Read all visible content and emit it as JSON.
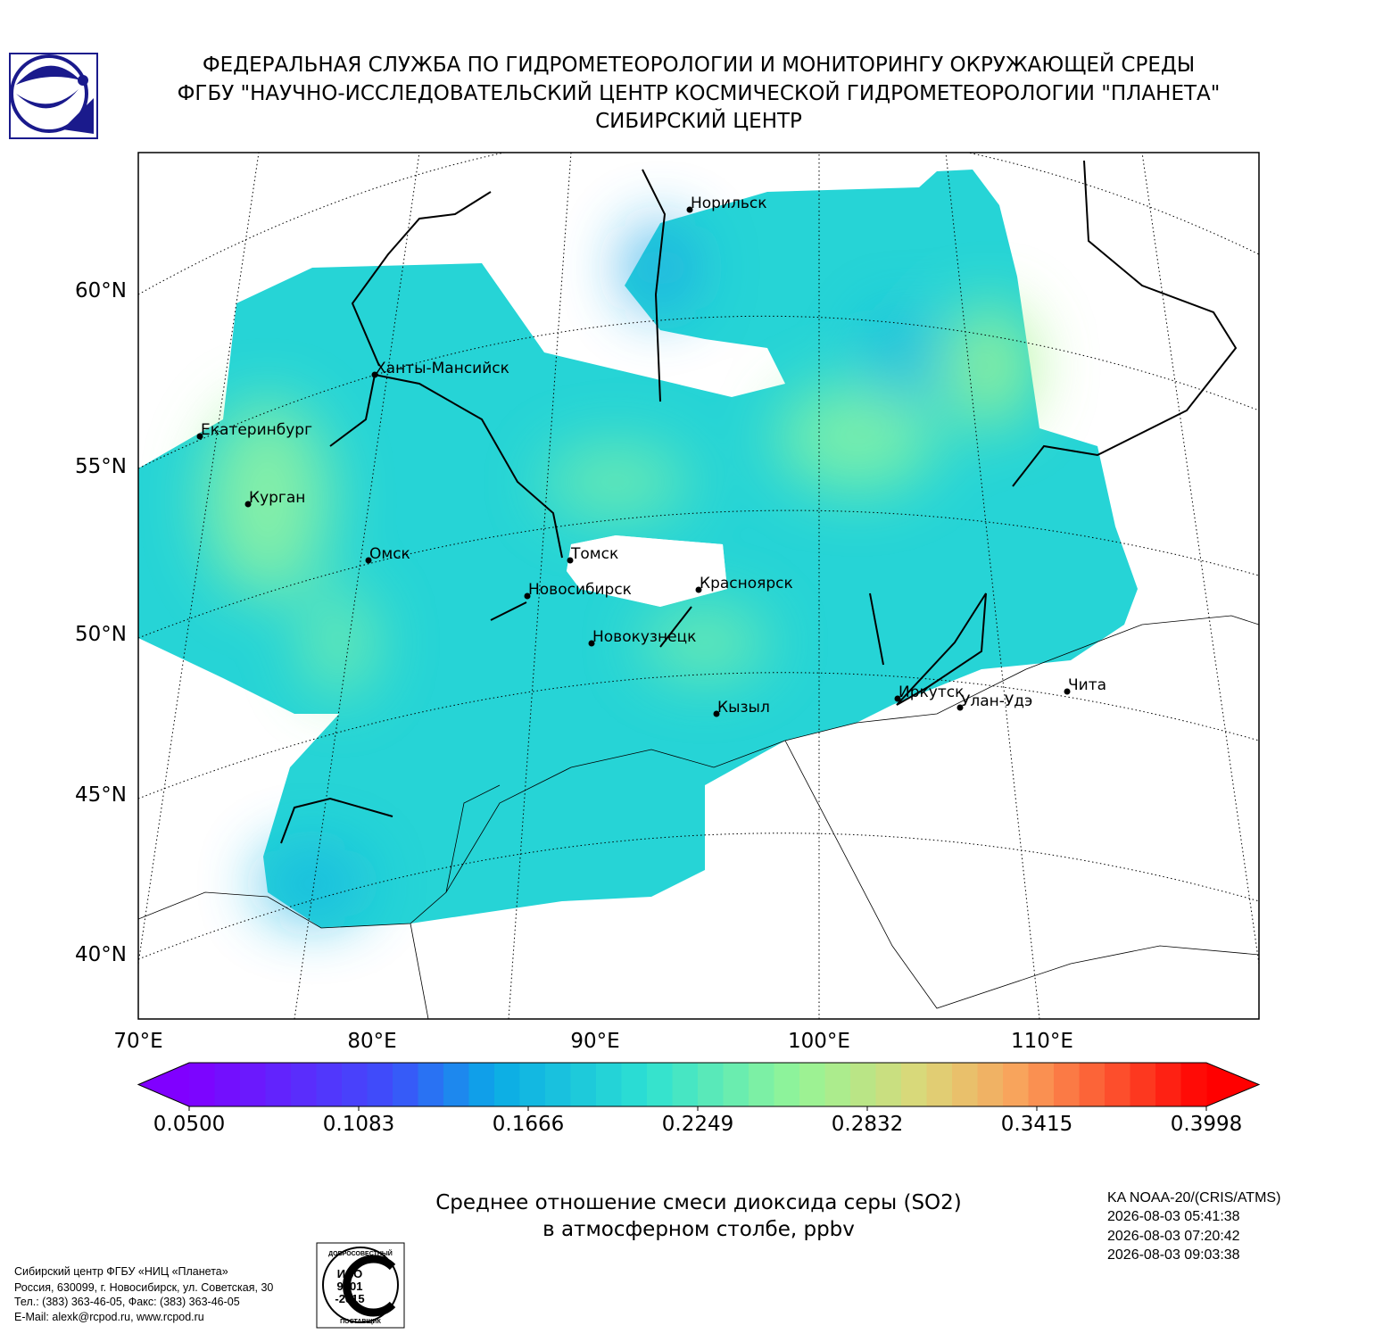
{
  "header": {
    "lines": [
      "ФЕДЕРАЛЬНАЯ СЛУЖБА ПО ГИДРОМЕТЕОРОЛОГИИ И МОНИТОРИНГУ ОКРУЖАЮЩЕЙ СРЕДЫ",
      "ФГБУ \"НАУЧНО-ИССЛЕДОВАТЕЛЬСКИЙ ЦЕНТР КОСМИЧЕСКОЙ ГИДРОМЕТЕОРОЛОГИИ \"ПЛАНЕТА\"",
      "СИБИРСКИЙ ЦЕНТР"
    ]
  },
  "map": {
    "lat_labels": [
      "60°N",
      "55°N",
      "50°N",
      "45°N",
      "40°N"
    ],
    "lon_labels": [
      "70°E",
      "80°E",
      "90°E",
      "100°E",
      "110°E"
    ],
    "cities": [
      "Норильск",
      "Ханты-Мансийск",
      "Екатеринбург",
      "Курган",
      "Омск",
      "Томск",
      "Новосибирск",
      "Красноярск",
      "Новокузнецк",
      "Кызыл",
      "Иркутск",
      "Улан-Удэ",
      "Чита"
    ]
  },
  "colorbar": {
    "range": [
      0.05,
      0.3998
    ],
    "ticks": [
      {
        "value": 0.05,
        "label": "0.0500"
      },
      {
        "value": 0.1083,
        "label": "0.1083"
      },
      {
        "value": 0.1666,
        "label": "0.1666"
      },
      {
        "value": 0.2249,
        "label": "0.2249"
      },
      {
        "value": 0.2832,
        "label": "0.2832"
      },
      {
        "value": 0.3415,
        "label": "0.3415"
      },
      {
        "value": 0.3998,
        "label": "0.3998"
      }
    ]
  },
  "caption": {
    "lines": [
      "Среднее отношение смеси диоксида серы (SO2)",
      "в атмосферном столбе, ppbv"
    ]
  },
  "satellite": {
    "lines": [
      "KA NOAA-20/(CRIS/ATMS)",
      "2026-08-03 05:41:38",
      "2026-08-03 07:20:42",
      "2026-08-03 09:03:38"
    ]
  },
  "footer": {
    "lines": [
      "Сибирский центр ФГБУ «НИЦ «Планета»",
      "Россия, 630099, г. Новосибирск, ул. Советская, 30",
      "Тел.: (383) 363-46-05, Факс: (383) 363-46-05",
      "E-Mail: alexk@rcpod.ru, www.rcpod.ru"
    ]
  },
  "badge": {
    "lines": [
      "ДОБРОСОВЕСТНЫЙ",
      "ИСО",
      "9001",
      "-2015",
      "ПОСТАВЩИК"
    ]
  }
}
